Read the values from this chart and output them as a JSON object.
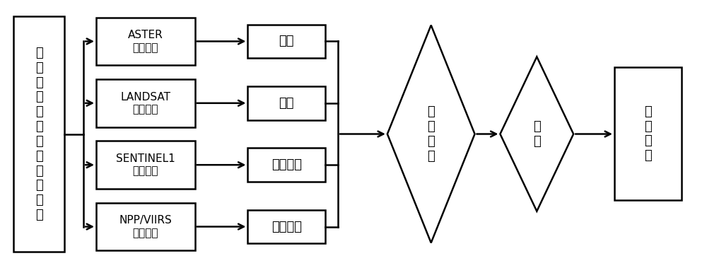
{
  "bg_color": "#ffffff",
  "box_edge_color": "#000000",
  "box_fill_color": "#ffffff",
  "arrow_color": "#000000",
  "font_size": 13,
  "font_size_small": 11,
  "left_box": {
    "text": "乡\n镇\n尺\n度\n海\n啸\n灾\n害\n脆\n弱\n评\n估"
  },
  "ml_texts": [
    "ASTER\n高程数据",
    "LANDSAT\n卫星数据",
    "SENTINEL1\n卫星数据",
    "NPP/VIIRS\n灯光数据"
  ],
  "mr_texts": [
    "高程",
    "坡度",
    "土地利用",
    "社会经济"
  ],
  "diamond1_text": "层\n次\n分\n析",
  "diamond2_text": "分\n级",
  "right_box_text": "脆\n弱\n等\n级"
}
